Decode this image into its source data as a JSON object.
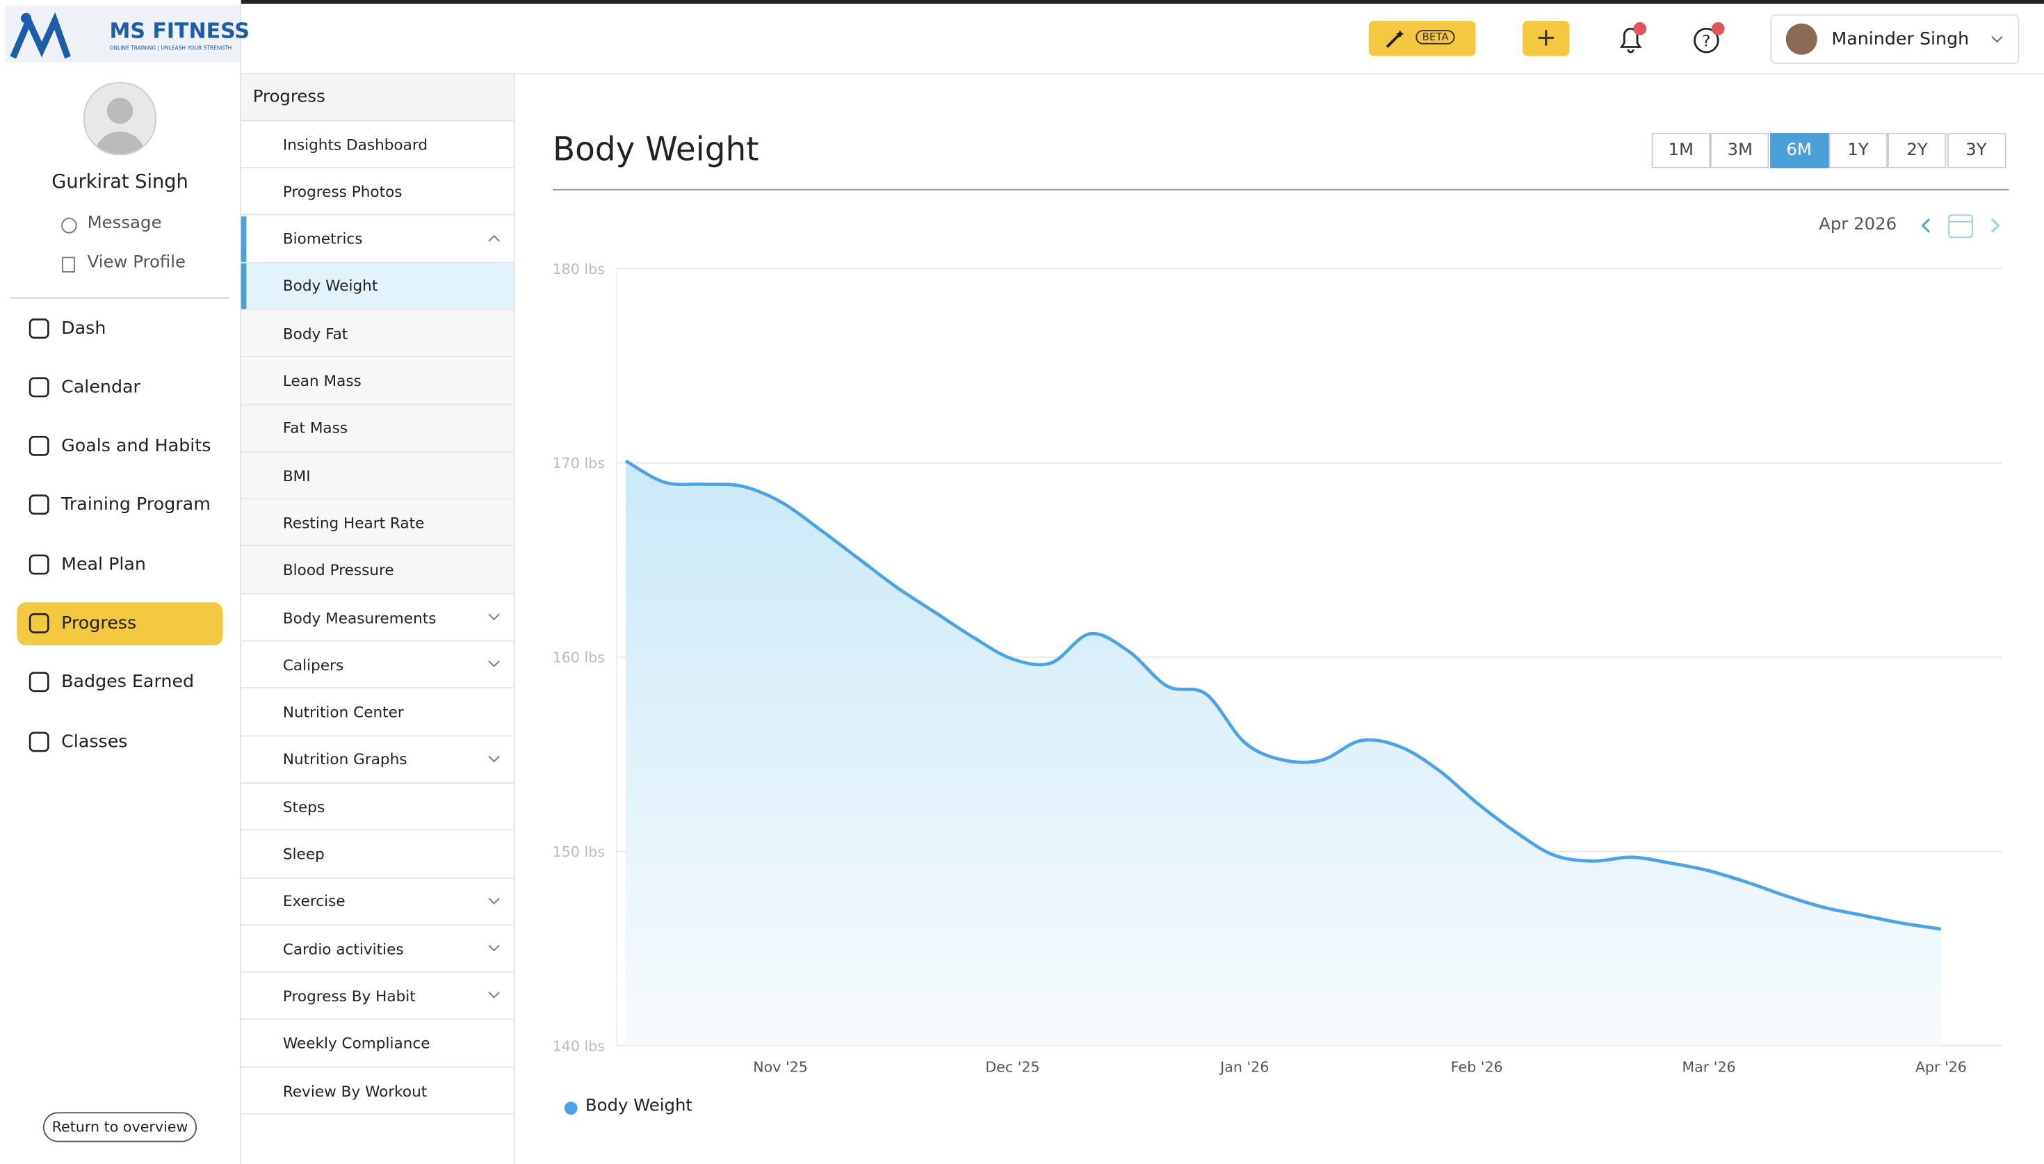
{
  "header": {
    "logo": "MS FITNESS",
    "tagline": "ONLINE TRAINING | UNLEASH YOUR STRENGTH",
    "beta": "BETA",
    "user": "Maninder Singh"
  },
  "sidebar": {
    "profile_name": "Gurkirat Singh",
    "message": "Message",
    "view_profile": "View Profile",
    "nav": [
      "Dash",
      "Calendar",
      "Goals and Habits",
      "Training Program",
      "Meal Plan",
      "Progress",
      "Badges Earned",
      "Classes"
    ],
    "return": "Return to overview"
  },
  "submenu": {
    "title": "Progress",
    "items": [
      "Insights Dashboard",
      "Progress Photos",
      "Biometrics",
      "Body Weight",
      "Body Fat",
      "Lean Mass",
      "Fat Mass",
      "BMI",
      "Resting Heart Rate",
      "Blood Pressure",
      "Body Measurements",
      "Calipers",
      "Nutrition Center",
      "Nutrition Graphs",
      "Steps",
      "Sleep",
      "Exercise",
      "Cardio activities",
      "Progress By Habit",
      "Weekly Compliance",
      "Review By Workout"
    ]
  },
  "controls": {
    "ranges": [
      "1M",
      "3M",
      "6M",
      "1Y",
      "2Y",
      "3Y"
    ],
    "period": "Apr 2026"
  },
  "chart_data": {
    "type": "area",
    "title": "Body Weight",
    "categories": [
      null,
      null,
      null,
      null,
      "Nov '25",
      null,
      null,
      null,
      null,
      null,
      "Dec '25",
      null,
      null,
      null,
      null,
      null,
      "Jan '26",
      null,
      null,
      null,
      null,
      null,
      "Feb '26",
      null,
      null,
      null,
      null,
      null,
      "Mar '26",
      null,
      null,
      null,
      null,
      null,
      "Apr '26"
    ],
    "series": [
      {
        "name": "Body Weight",
        "color": "#4aa3e8",
        "values": [
          170.1,
          169.0,
          168.9,
          168.8,
          168.0,
          166.6,
          165.1,
          163.6,
          162.3,
          161.0,
          159.9,
          159.7,
          161.2,
          160.3,
          158.5,
          158.1,
          155.6,
          154.7,
          154.7,
          155.7,
          155.4,
          154.2,
          152.5,
          151.0,
          149.8,
          149.5,
          149.7,
          149.4,
          149.0,
          148.4,
          147.7,
          147.1,
          146.7,
          146.3,
          146.0
        ]
      }
    ],
    "ylim": [
      140,
      180
    ],
    "yticks": [
      {
        "value": 140,
        "label": "140 lbs"
      },
      {
        "value": 150,
        "label": "150 lbs"
      },
      {
        "value": 160,
        "label": "160 lbs"
      },
      {
        "value": 170,
        "label": "170 lbs"
      },
      {
        "value": 180,
        "label": "180 lbs"
      }
    ],
    "grid": true
  }
}
